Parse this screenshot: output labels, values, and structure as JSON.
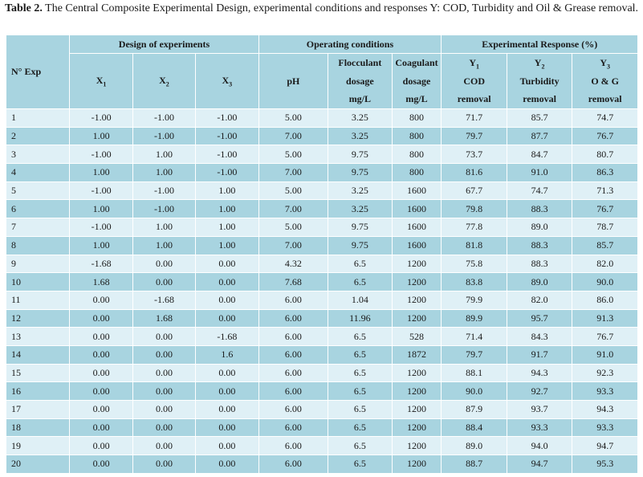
{
  "caption": {
    "label": "Table 2.",
    "text": " The Central Composite Experimental Design, experimental conditions and responses Y: COD, Turbidity and Oil & Grease removal."
  },
  "headers": {
    "exp_no": "N° Exp",
    "group_design": "Design of experiments",
    "group_conditions": "Operating conditions",
    "group_response": "Experimental Response (%)",
    "x1_main": "X",
    "x1_sub": "1",
    "x2_main": "X",
    "x2_sub": "2",
    "x3_main": "X",
    "x3_sub": "3",
    "ph": "pH",
    "floc": [
      "Flocculant",
      "dosage",
      "mg/L"
    ],
    "coag": [
      "Coagulant",
      "dosage",
      "mg/L"
    ],
    "y1": [
      "Y",
      "1",
      "COD",
      "removal"
    ],
    "y2": [
      "Y",
      "2",
      "Turbidity",
      "removal"
    ],
    "y3": [
      "Y",
      "3",
      "O & G",
      "removal"
    ]
  },
  "rows": [
    [
      "1",
      "-1.00",
      "-1.00",
      "-1.00",
      "5.00",
      "3.25",
      "800",
      "71.7",
      "85.7",
      "74.7"
    ],
    [
      "2",
      "1.00",
      "-1.00",
      "-1.00",
      "7.00",
      "3.25",
      "800",
      "79.7",
      "87.7",
      "76.7"
    ],
    [
      "3",
      "-1.00",
      "1.00",
      "-1.00",
      "5.00",
      "9.75",
      "800",
      "73.7",
      "84.7",
      "80.7"
    ],
    [
      "4",
      "1.00",
      "1.00",
      "-1.00",
      "7.00",
      "9.75",
      "800",
      "81.6",
      "91.0",
      "86.3"
    ],
    [
      "5",
      "-1.00",
      "-1.00",
      "1.00",
      "5.00",
      "3.25",
      "1600",
      "67.7",
      "74.7",
      "71.3"
    ],
    [
      "6",
      "1.00",
      "-1.00",
      "1.00",
      "7.00",
      "3.25",
      "1600",
      "79.8",
      "88.3",
      "76.7"
    ],
    [
      "7",
      "-1.00",
      "1.00",
      "1.00",
      "5.00",
      "9.75",
      "1600",
      "77.8",
      "89.0",
      "78.7"
    ],
    [
      "8",
      "1.00",
      "1.00",
      "1.00",
      "7.00",
      "9.75",
      "1600",
      "81.8",
      "88.3",
      "85.7"
    ],
    [
      "9",
      "-1.68",
      "0.00",
      "0.00",
      "4.32",
      "6.5",
      "1200",
      "75.8",
      "88.3",
      "82.0"
    ],
    [
      "10",
      "1.68",
      "0.00",
      "0.00",
      "7.68",
      "6.5",
      "1200",
      "83.8",
      "89.0",
      "90.0"
    ],
    [
      "11",
      "0.00",
      "-1.68",
      "0.00",
      "6.00",
      "1.04",
      "1200",
      "79.9",
      "82.0",
      "86.0"
    ],
    [
      "12",
      "0.00",
      "1.68",
      "0.00",
      "6.00",
      "11.96",
      "1200",
      "89.9",
      "95.7",
      "91.3"
    ],
    [
      "13",
      "0.00",
      "0.00",
      "-1.68",
      "6.00",
      "6.5",
      "528",
      "71.4",
      "84.3",
      "76.7"
    ],
    [
      "14",
      "0.00",
      "0.00",
      "1.6",
      "6.00",
      "6.5",
      "1872",
      "79.7",
      "91.7",
      "91.0"
    ],
    [
      "15",
      "0.00",
      "0.00",
      "0.00",
      "6.00",
      "6.5",
      "1200",
      "88.1",
      "94.3",
      "92.3"
    ],
    [
      "16",
      "0.00",
      "0.00",
      "0.00",
      "6.00",
      "6.5",
      "1200",
      "90.0",
      "92.7",
      "93.3"
    ],
    [
      "17",
      "0.00",
      "0.00",
      "0.00",
      "6.00",
      "6.5",
      "1200",
      "87.9",
      "93.7",
      "94.3"
    ],
    [
      "18",
      "0.00",
      "0.00",
      "0.00",
      "6.00",
      "6.5",
      "1200",
      "88.4",
      "93.3",
      "93.3"
    ],
    [
      "19",
      "0.00",
      "0.00",
      "0.00",
      "6.00",
      "6.5",
      "1200",
      "89.0",
      "94.0",
      "94.7"
    ],
    [
      "20",
      "0.00",
      "0.00",
      "0.00",
      "6.00",
      "6.5",
      "1200",
      "88.7",
      "94.7",
      "95.3"
    ]
  ]
}
